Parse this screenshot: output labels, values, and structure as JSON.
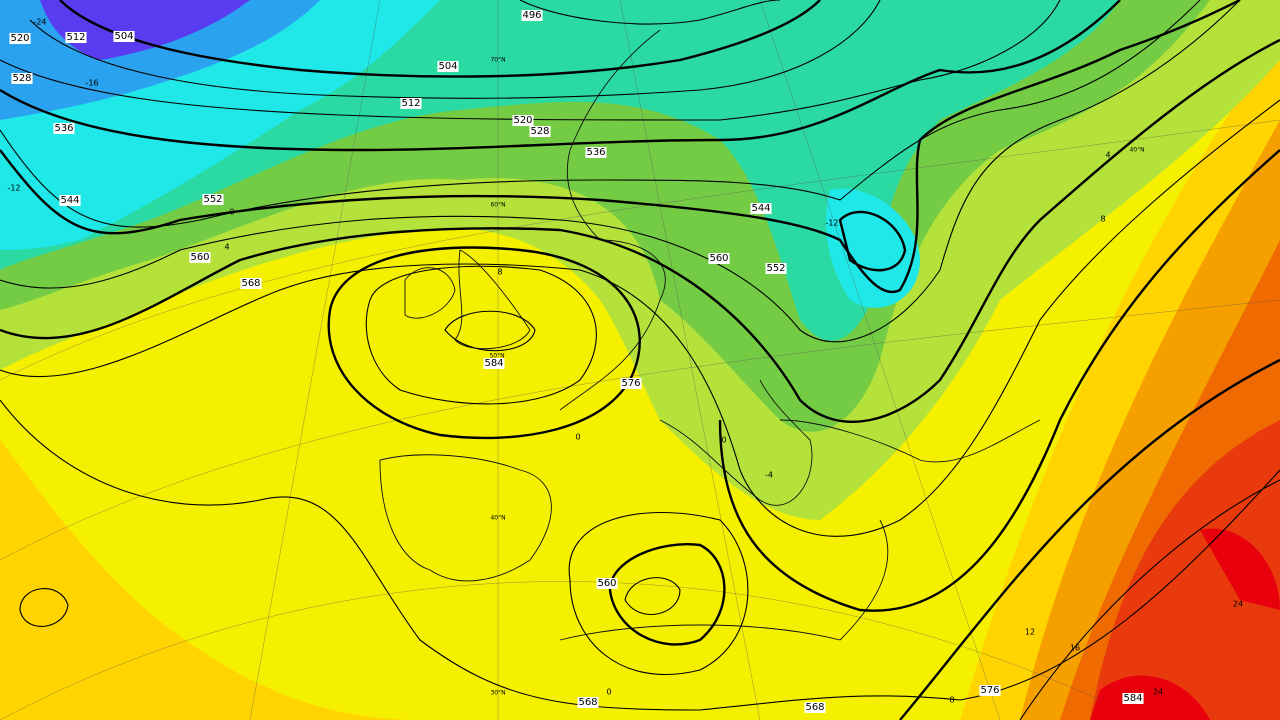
{
  "map": {
    "contour_labels": [
      "496",
      "504",
      "504",
      "512",
      "512",
      "520",
      "520",
      "528",
      "528",
      "536",
      "536",
      "544",
      "544",
      "552",
      "552",
      "560",
      "560",
      "560",
      "568",
      "568",
      "568",
      "576",
      "576",
      "584",
      "584"
    ],
    "temperature_labels": [
      "-24",
      "-16",
      "-12",
      "0",
      "4",
      "8",
      "0",
      "0",
      "-12",
      "0",
      "-4",
      "4",
      "8",
      "12",
      "16",
      "24",
      "24",
      "8"
    ],
    "latitude_labels": [
      "70°N",
      "60°N",
      "50°N",
      "40°N",
      "30°N",
      "40°N"
    ]
  }
}
